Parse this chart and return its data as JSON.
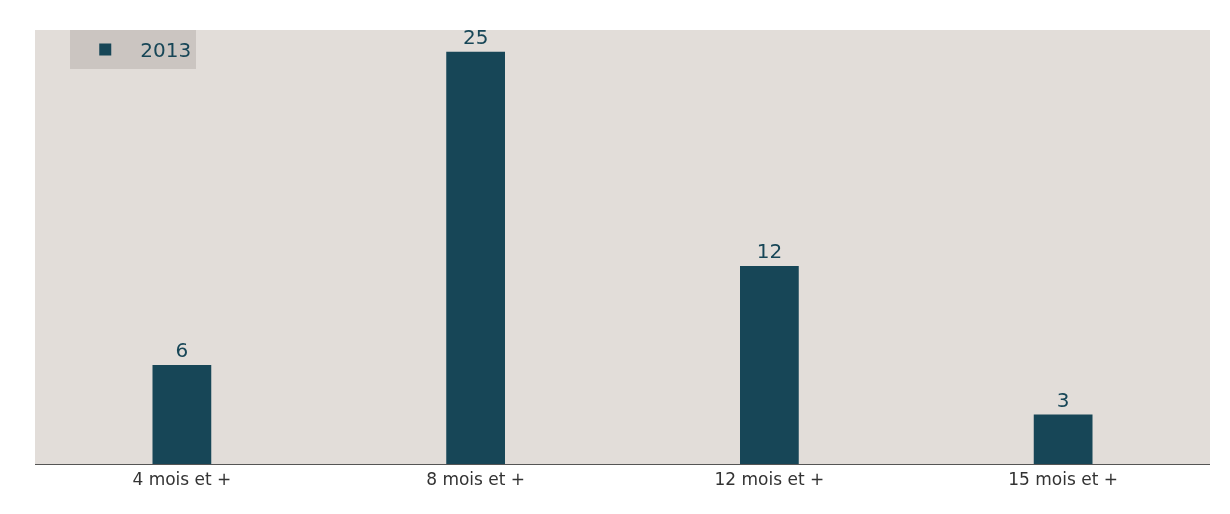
{
  "chart_data": {
    "type": "bar",
    "categories": [
      "4 mois et +",
      "8 mois et +",
      "12 mois et +",
      "15 mois et +"
    ],
    "series": [
      {
        "name": "2013",
        "color": "#174657",
        "values": [
          6,
          25,
          12,
          3
        ]
      }
    ],
    "data_labels": true,
    "legend": "top left",
    "grid": false
  }
}
